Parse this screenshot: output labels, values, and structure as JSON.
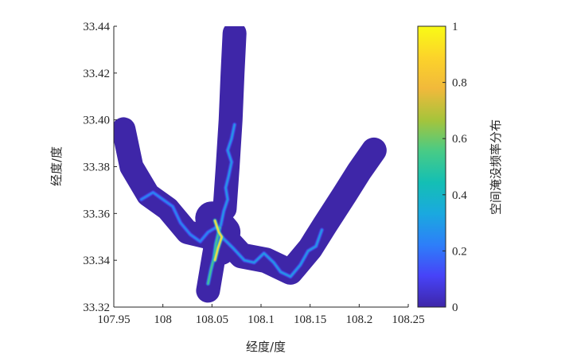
{
  "chart_data": {
    "type": "heatmap",
    "xlabel": "经度/度",
    "ylabel": "经度/度",
    "colorbar_label": "空间淹没频率分布",
    "xlim": [
      107.95,
      108.25
    ],
    "ylim": [
      33.32,
      33.44
    ],
    "x_ticks": [
      107.95,
      108,
      108.05,
      108.1,
      108.15,
      108.2,
      108.25
    ],
    "x_tick_labels": [
      "107.95",
      "108",
      "108.05",
      "108.1",
      "108.15",
      "108.2",
      "108.25"
    ],
    "y_ticks": [
      33.32,
      33.34,
      33.36,
      33.38,
      33.4,
      33.42,
      33.44
    ],
    "y_tick_labels": [
      "33.32",
      "33.34",
      "33.36",
      "33.38",
      "33.40",
      "33.42",
      "33.44"
    ],
    "colorbar": {
      "range": [
        0,
        1
      ],
      "ticks": [
        0,
        0.2,
        0.4,
        0.6,
        0.8,
        1
      ],
      "tick_labels": [
        "0",
        "0.2",
        "0.4",
        "0.6",
        "0.8",
        "1"
      ],
      "colormap": "parula",
      "colors": [
        "#3e26a8",
        "#4743f8",
        "#2d7ff9",
        "#1aa9df",
        "#14bfb4",
        "#48cb86",
        "#a6c43b",
        "#f1b93b",
        "#fcd32a",
        "#f9fb15"
      ]
    },
    "background_value": 0.0,
    "river_channels": [
      {
        "name": "north-branch",
        "frequency": 0.3,
        "points": [
          [
            108.073,
            33.398
          ],
          [
            108.07,
            33.392
          ],
          [
            108.066,
            33.387
          ],
          [
            108.07,
            33.382
          ],
          [
            108.067,
            33.376
          ],
          [
            108.064,
            33.371
          ],
          [
            108.066,
            33.366
          ],
          [
            108.062,
            33.361
          ],
          [
            108.059,
            33.355
          ]
        ]
      },
      {
        "name": "west-branch",
        "frequency": 0.25,
        "points": [
          [
            107.978,
            33.366
          ],
          [
            107.99,
            33.369
          ],
          [
            108.0,
            33.366
          ],
          [
            108.01,
            33.363
          ],
          [
            108.018,
            33.356
          ],
          [
            108.028,
            33.351
          ],
          [
            108.038,
            33.348
          ],
          [
            108.046,
            33.352
          ],
          [
            108.054,
            33.354
          ]
        ]
      },
      {
        "name": "southeast-branch",
        "frequency": 0.3,
        "points": [
          [
            108.06,
            33.35
          ],
          [
            108.072,
            33.345
          ],
          [
            108.083,
            33.34
          ],
          [
            108.093,
            33.339
          ],
          [
            108.103,
            33.343
          ],
          [
            108.113,
            33.339
          ],
          [
            108.12,
            33.335
          ],
          [
            108.13,
            33.333
          ],
          [
            108.14,
            33.338
          ],
          [
            108.148,
            33.344
          ],
          [
            108.156,
            33.346
          ],
          [
            108.162,
            33.353
          ]
        ]
      },
      {
        "name": "south-branch",
        "frequency": 0.55,
        "points": [
          [
            108.058,
            33.354
          ],
          [
            108.054,
            33.347
          ],
          [
            108.052,
            33.341
          ],
          [
            108.049,
            33.336
          ],
          [
            108.046,
            33.33
          ]
        ]
      },
      {
        "name": "confluence",
        "frequency": 0.95,
        "points": [
          [
            108.053,
            33.357
          ],
          [
            108.057,
            33.352
          ],
          [
            108.06,
            33.35
          ],
          [
            108.056,
            33.345
          ],
          [
            108.053,
            33.34
          ]
        ]
      }
    ]
  }
}
